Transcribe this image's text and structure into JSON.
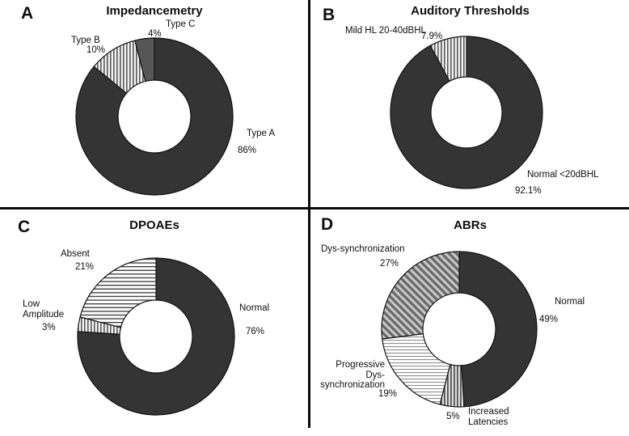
{
  "figure": {
    "description_labels": {
      "letter_a": "A",
      "letter_b": "B",
      "letter_c": "C",
      "letter_d": "D"
    }
  },
  "colors": {
    "dark_slice": "#343434",
    "gray_slice": "#565656",
    "divider": "#0a0a0a",
    "background": "#ffffff",
    "slice_outline": "#111111"
  },
  "chart_data": [
    {
      "type": "pie",
      "subtype": "donut",
      "panel_letter": "A",
      "title": "Impedancemetry",
      "start_angle": "top",
      "direction": "clockwise",
      "hole_ratio": 0.46,
      "slices": [
        {
          "label": "Type A",
          "pct_text": "86%",
          "value": 86,
          "fill": "dark"
        },
        {
          "label": "Type B",
          "pct_text": "10%",
          "value": 10,
          "fill": "vstripe"
        },
        {
          "label": "Type C",
          "pct_text": "4%",
          "value": 4,
          "fill": "gray"
        }
      ]
    },
    {
      "type": "pie",
      "subtype": "donut",
      "panel_letter": "B",
      "title": "Auditory Thresholds",
      "start_angle": "top",
      "direction": "clockwise",
      "hole_ratio": 0.47,
      "slices": [
        {
          "label": "Normal <20dBHL",
          "pct_text": "92.1%",
          "value": 92.1,
          "fill": "dark"
        },
        {
          "label": "Mild HL 20-40dBHL",
          "pct_text": "7.9%",
          "value": 7.9,
          "fill": "vstripe"
        }
      ]
    },
    {
      "type": "pie",
      "subtype": "donut",
      "panel_letter": "C",
      "title": "DPOAEs",
      "start_angle": "top",
      "direction": "clockwise",
      "hole_ratio": 0.46,
      "slices": [
        {
          "label": "Normal",
          "pct_text": "76%",
          "value": 76,
          "fill": "dark"
        },
        {
          "label": "Low\nAmplitude",
          "pct_text": "3%",
          "value": 3,
          "fill": "vstripe"
        },
        {
          "label": "Absent",
          "pct_text": "21%",
          "value": 21,
          "fill": "hstripe"
        }
      ]
    },
    {
      "type": "pie",
      "subtype": "donut",
      "panel_letter": "D",
      "title": "ABRs",
      "start_angle": "top",
      "direction": "clockwise",
      "hole_ratio": 0.47,
      "slices": [
        {
          "label": "Normal",
          "pct_text": "49%",
          "value": 49,
          "fill": "dark"
        },
        {
          "label": "Increased\nLatencies",
          "pct_text": "5%",
          "value": 5,
          "fill": "vstripe2"
        },
        {
          "label": "Progressive\nDys-synchronization",
          "pct_text": "19%",
          "value": 19,
          "fill": "hstripe_light"
        },
        {
          "label": "Dys-synchronization",
          "pct_text": "27%",
          "value": 27,
          "fill": "diag"
        }
      ]
    }
  ]
}
